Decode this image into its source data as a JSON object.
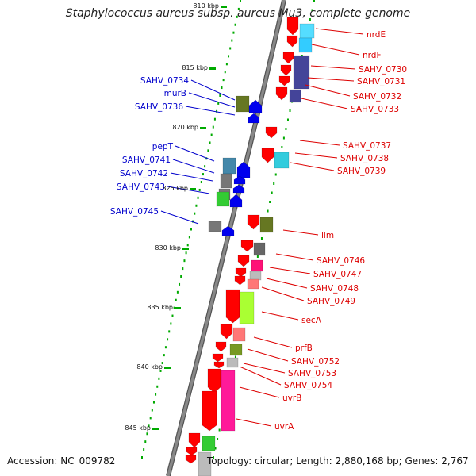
{
  "title": "Staphylococcus aureus subsp. aureus Mu3, complete genome",
  "accession_text": "Accession: NC_009782",
  "summary_text": "Topology: circular; Length: 2,880,168 bp; Genes: 2,767",
  "colors": {
    "backbone": "#888888",
    "forward_label": "#dd0000",
    "reverse_label": "#0000cc",
    "tick": "#00aa00"
  },
  "ticks": [
    "810 kbp",
    "815 kbp",
    "820 kbp",
    "825 kbp",
    "830 kbp",
    "835 kbp",
    "840 kbp",
    "845 kbp"
  ],
  "genes": [
    {
      "name": "nrdE",
      "strand": "+"
    },
    {
      "name": "nrdF",
      "strand": "+"
    },
    {
      "name": "SAHV_0730",
      "strand": "+"
    },
    {
      "name": "SAHV_0731",
      "strand": "+"
    },
    {
      "name": "SAHV_0732",
      "strand": "+"
    },
    {
      "name": "SAHV_0733",
      "strand": "+"
    },
    {
      "name": "SAHV_0734",
      "strand": "-"
    },
    {
      "name": "murB",
      "strand": "-"
    },
    {
      "name": "SAHV_0736",
      "strand": "-"
    },
    {
      "name": "SAHV_0737",
      "strand": "+"
    },
    {
      "name": "SAHV_0738",
      "strand": "+"
    },
    {
      "name": "SAHV_0739",
      "strand": "+"
    },
    {
      "name": "pepT",
      "strand": "-"
    },
    {
      "name": "SAHV_0741",
      "strand": "-"
    },
    {
      "name": "SAHV_0742",
      "strand": "-"
    },
    {
      "name": "SAHV_0743",
      "strand": "-"
    },
    {
      "name": "SAHV_0745",
      "strand": "-"
    },
    {
      "name": "llm",
      "strand": "+"
    },
    {
      "name": "SAHV_0746",
      "strand": "+"
    },
    {
      "name": "SAHV_0747",
      "strand": "+"
    },
    {
      "name": "SAHV_0748",
      "strand": "+"
    },
    {
      "name": "SAHV_0749",
      "strand": "+"
    },
    {
      "name": "secA",
      "strand": "+"
    },
    {
      "name": "prfB",
      "strand": "+"
    },
    {
      "name": "SAHV_0752",
      "strand": "+"
    },
    {
      "name": "SAHV_0753",
      "strand": "+"
    },
    {
      "name": "SAHV_0754",
      "strand": "+"
    },
    {
      "name": "uvrB",
      "strand": "+"
    },
    {
      "name": "uvrA",
      "strand": "+"
    }
  ]
}
